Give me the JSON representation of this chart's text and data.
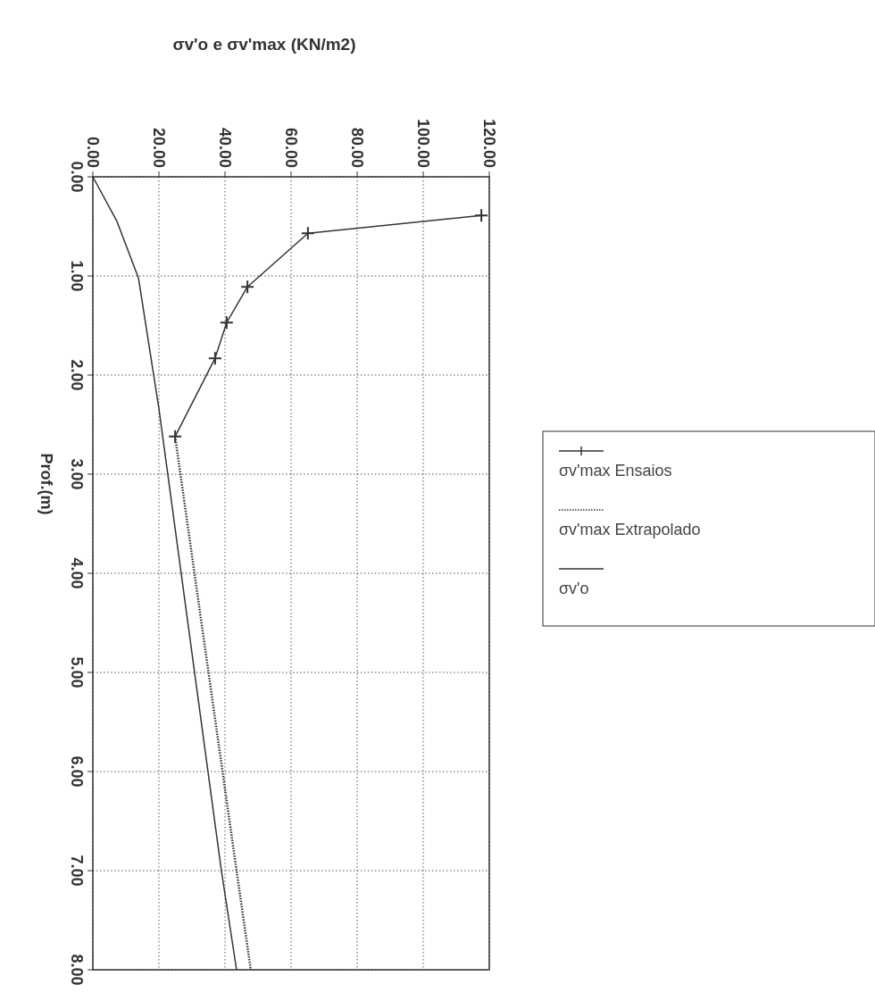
{
  "chart_data": {
    "type": "line",
    "title": "σv'o e σv'max (KN/m2)",
    "ylabel": "Prof.(m)",
    "xlim": [
      0,
      120
    ],
    "xticks": [
      {
        "value": 0,
        "label": "0.00"
      },
      {
        "value": 20,
        "label": "20.00"
      },
      {
        "value": 40,
        "label": "40.00"
      },
      {
        "value": 60,
        "label": "60.00"
      },
      {
        "value": 80,
        "label": "80.00"
      },
      {
        "value": 100,
        "label": "100.00"
      },
      {
        "value": 120,
        "label": "120.00"
      }
    ],
    "ylim": [
      8,
      0
    ],
    "yticks": [
      {
        "value": 0,
        "label": "0.00"
      },
      {
        "value": 1,
        "label": "1.00"
      },
      {
        "value": 2,
        "label": "2.00"
      },
      {
        "value": 3,
        "label": "3.00"
      },
      {
        "value": 4,
        "label": "4.00"
      },
      {
        "value": 5,
        "label": "5.00"
      },
      {
        "value": 6,
        "label": "6.00"
      },
      {
        "value": 7,
        "label": "7.00"
      },
      {
        "value": 8,
        "label": "8.00"
      }
    ],
    "grid": true,
    "legend": "right",
    "series": [
      {
        "name": "σv'max Ensaios",
        "color": "#333333",
        "marker": "cross",
        "line_style": "solid",
        "x": [
          117.6,
          65.1,
          46.8,
          40.5,
          37.0,
          24.9
        ],
        "values": [
          0.39,
          0.57,
          1.11,
          1.47,
          1.83,
          2.62
        ]
      },
      {
        "name": "σv'max Extrapolado",
        "color": "#333333",
        "marker": "none",
        "line_style": "dotted",
        "x": [
          24.9,
          43.5,
          47.8
        ],
        "values": [
          2.62,
          7,
          8
        ]
      },
      {
        "name": "σv'o",
        "color": "#333333",
        "marker": "none",
        "line_style": "solid",
        "x": [
          0,
          7.3,
          13.8,
          20,
          38.9,
          43.5
        ],
        "values": [
          0,
          0.45,
          1.02,
          2.34,
          7,
          8
        ]
      }
    ]
  }
}
